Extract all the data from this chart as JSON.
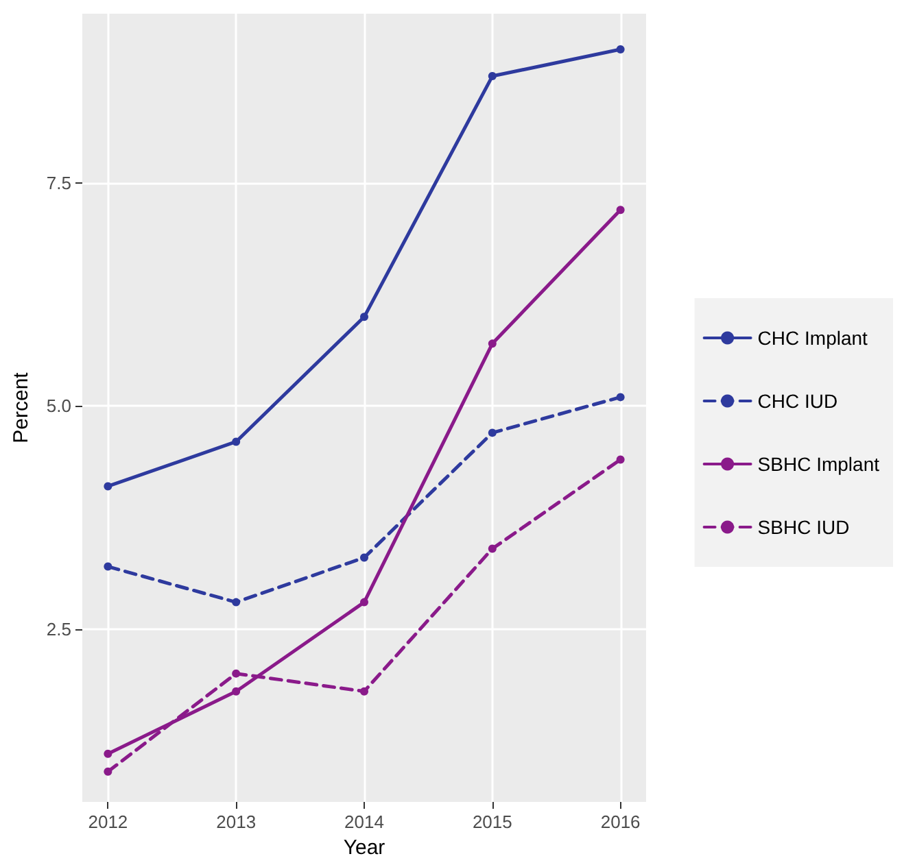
{
  "chart_data": {
    "type": "line",
    "xlabel": "Year",
    "ylabel": "Percent",
    "x": [
      2012,
      2013,
      2014,
      2015,
      2016
    ],
    "series": [
      {
        "name": "CHC Implant",
        "color": "#2e3a9e",
        "line_style": "solid",
        "values": [
          4.1,
          4.6,
          6.0,
          8.7,
          9.0
        ]
      },
      {
        "name": "CHC IUD",
        "color": "#2e3a9e",
        "line_style": "dashed",
        "values": [
          3.2,
          2.8,
          3.3,
          4.7,
          5.1
        ]
      },
      {
        "name": "SBHC Implant",
        "color": "#8a1a8a",
        "line_style": "solid",
        "values": [
          1.1,
          1.8,
          2.8,
          5.7,
          7.2
        ]
      },
      {
        "name": "SBHC IUD",
        "color": "#8a1a8a",
        "line_style": "dashed",
        "values": [
          0.9,
          2.0,
          1.8,
          3.4,
          4.4
        ]
      }
    ],
    "xlim": [
      2011.8,
      2016.2
    ],
    "xticks": [
      2012,
      2013,
      2014,
      2015,
      2016
    ],
    "ylim": [
      0.56,
      9.4
    ],
    "yticks": [
      {
        "value": 2.5,
        "label": "2.5"
      },
      {
        "value": 5,
        "label": "5.0"
      },
      {
        "value": 7.5,
        "label": "7.5"
      }
    ],
    "grid": true,
    "legend": "right",
    "marker": "circle"
  }
}
